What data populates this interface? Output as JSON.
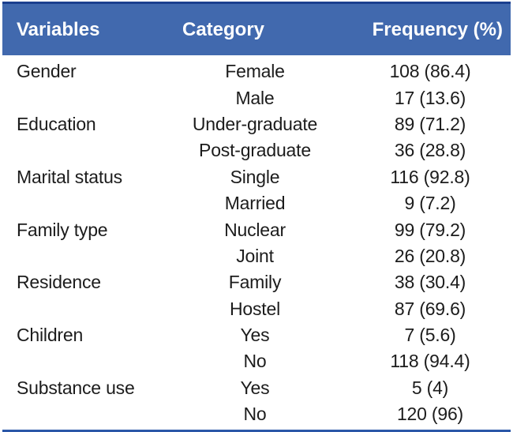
{
  "header": {
    "columns": [
      "Variables",
      "Category",
      "Frequency (%)"
    ]
  },
  "table": {
    "rows": [
      {
        "variable": "Gender",
        "category": "Female",
        "frequency": "108 (86.4)"
      },
      {
        "variable": "",
        "category": "Male",
        "frequency": "17 (13.6)"
      },
      {
        "variable": "Education",
        "category": "Under-graduate",
        "frequency": "89 (71.2)"
      },
      {
        "variable": "",
        "category": "Post-graduate",
        "frequency": "36 (28.8)"
      },
      {
        "variable": "Marital status",
        "category": "Single",
        "frequency": "116 (92.8)"
      },
      {
        "variable": "",
        "category": "Married",
        "frequency": "9 (7.2)"
      },
      {
        "variable": "Family type",
        "category": "Nuclear",
        "frequency": "99 (79.2)"
      },
      {
        "variable": "",
        "category": "Joint",
        "frequency": "26 (20.8)"
      },
      {
        "variable": "Residence",
        "category": "Family",
        "frequency": "38 (30.4)"
      },
      {
        "variable": "",
        "category": "Hostel",
        "frequency": "87 (69.6)"
      },
      {
        "variable": "Children",
        "category": "Yes",
        "frequency": "7 (5.6)"
      },
      {
        "variable": "",
        "category": "No",
        "frequency": "118 (94.4)"
      },
      {
        "variable": "Substance use",
        "category": "Yes",
        "frequency": "5 (4)"
      },
      {
        "variable": "",
        "category": "No",
        "frequency": "120 (96)"
      }
    ]
  },
  "colors": {
    "header_bg": "#4169ae",
    "header_text": "#ffffff",
    "top_border": "#1b3f8f",
    "bottom_border": "#2b57a8",
    "body_text": "#1c1c1c",
    "background": "#ffffff"
  }
}
